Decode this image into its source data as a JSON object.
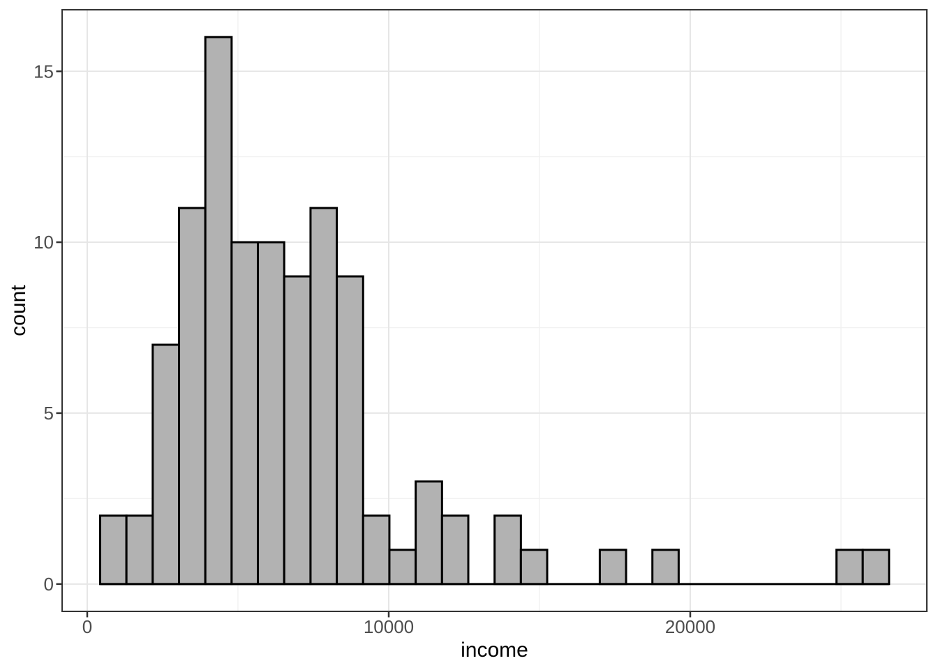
{
  "chart_data": {
    "type": "histogram",
    "title": "",
    "xlabel": "income",
    "ylabel": "count",
    "bin_edges": [
      428,
      1300,
      2172,
      3045,
      3917,
      4789,
      5661,
      6533,
      7406,
      8278,
      9150,
      10022,
      10894,
      11767,
      12639,
      13511,
      14383,
      15255,
      16128,
      17000,
      17872,
      18744,
      19616,
      20489,
      21361,
      22233,
      23105,
      23977,
      24850,
      25722,
      26594
    ],
    "counts": [
      2,
      2,
      7,
      11,
      16,
      10,
      10,
      9,
      11,
      9,
      2,
      1,
      3,
      2,
      0,
      2,
      1,
      0,
      0,
      1,
      0,
      1,
      0,
      0,
      0,
      0,
      0,
      0,
      1,
      1
    ],
    "total_observations": 102,
    "x_axis": {
      "label": "income",
      "ticks": [
        0,
        10000,
        20000
      ],
      "tick_labels": [
        "0",
        "10000",
        "20000"
      ],
      "minor_ticks": [
        5000,
        15000,
        25000
      ],
      "range": [
        -833,
        27847
      ]
    },
    "y_axis": {
      "label": "count",
      "ticks": [
        0,
        5,
        10,
        15
      ],
      "tick_labels": [
        "0",
        "5",
        "10",
        "15"
      ],
      "minor_ticks": [
        2.5,
        7.5,
        12.5
      ],
      "range": [
        -0.8,
        16.8
      ]
    },
    "grid": true,
    "legend": "none",
    "colors": {
      "bar_fill": "#b2b2b2",
      "bar_stroke": "#000000",
      "panel_border": "#333333",
      "grid_major": "#e6e6e6",
      "grid_minor": "#f1f1f1",
      "tick_color": "#333333",
      "tick_label_color": "#4d4d4d",
      "axis_title_color": "#000000",
      "background": "#ffffff"
    }
  }
}
